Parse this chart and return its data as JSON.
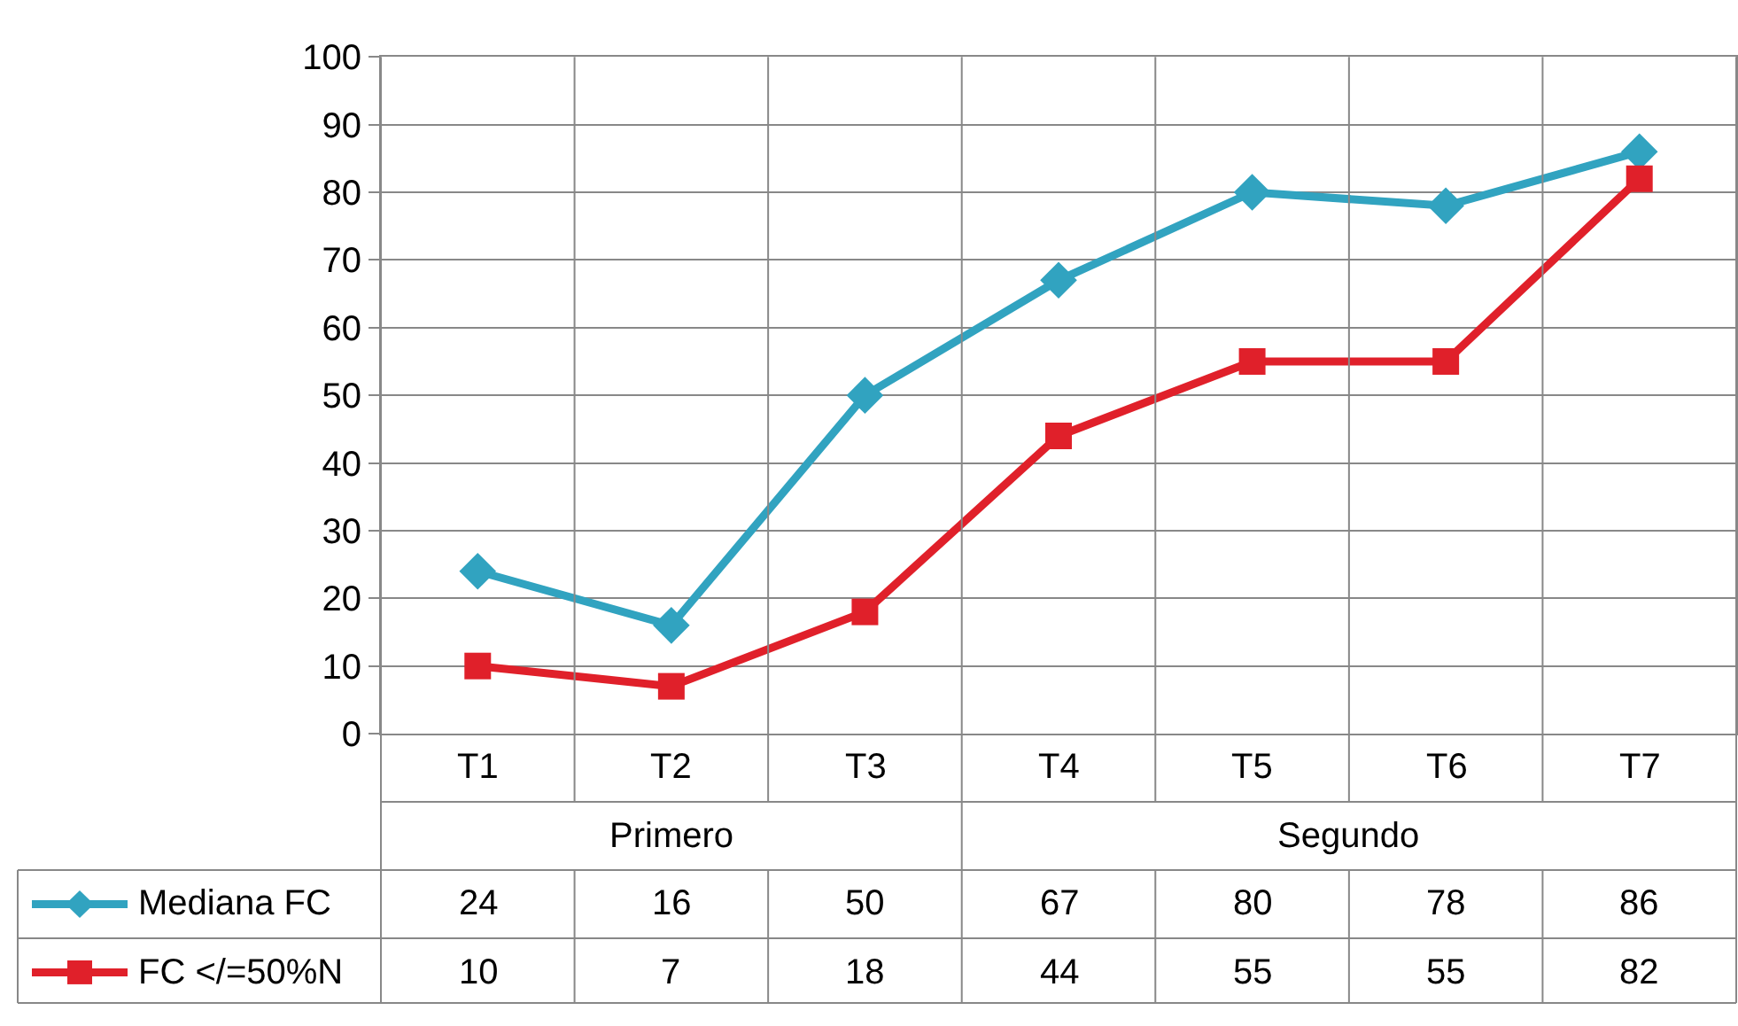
{
  "chart_data": {
    "type": "line",
    "categories": [
      "T1",
      "T2",
      "T3",
      "T4",
      "T5",
      "T6",
      "T7"
    ],
    "series": [
      {
        "name": "Mediana FC",
        "color": "#31a3c0",
        "marker": "diamond",
        "values": [
          24,
          16,
          50,
          67,
          80,
          78,
          86
        ]
      },
      {
        "name": "FC </=50%N",
        "color": "#e0202a",
        "marker": "square",
        "values": [
          10,
          7,
          18,
          44,
          55,
          55,
          82
        ]
      }
    ],
    "annotations": [
      "Primero",
      "Segundo"
    ],
    "ylim": [
      0,
      100
    ],
    "yticks": [
      0,
      10,
      20,
      30,
      40,
      50,
      60,
      70,
      80,
      90,
      100
    ],
    "grid": true,
    "legend": "bottom left",
    "data_labels": true,
    "line_style": "solid"
  }
}
